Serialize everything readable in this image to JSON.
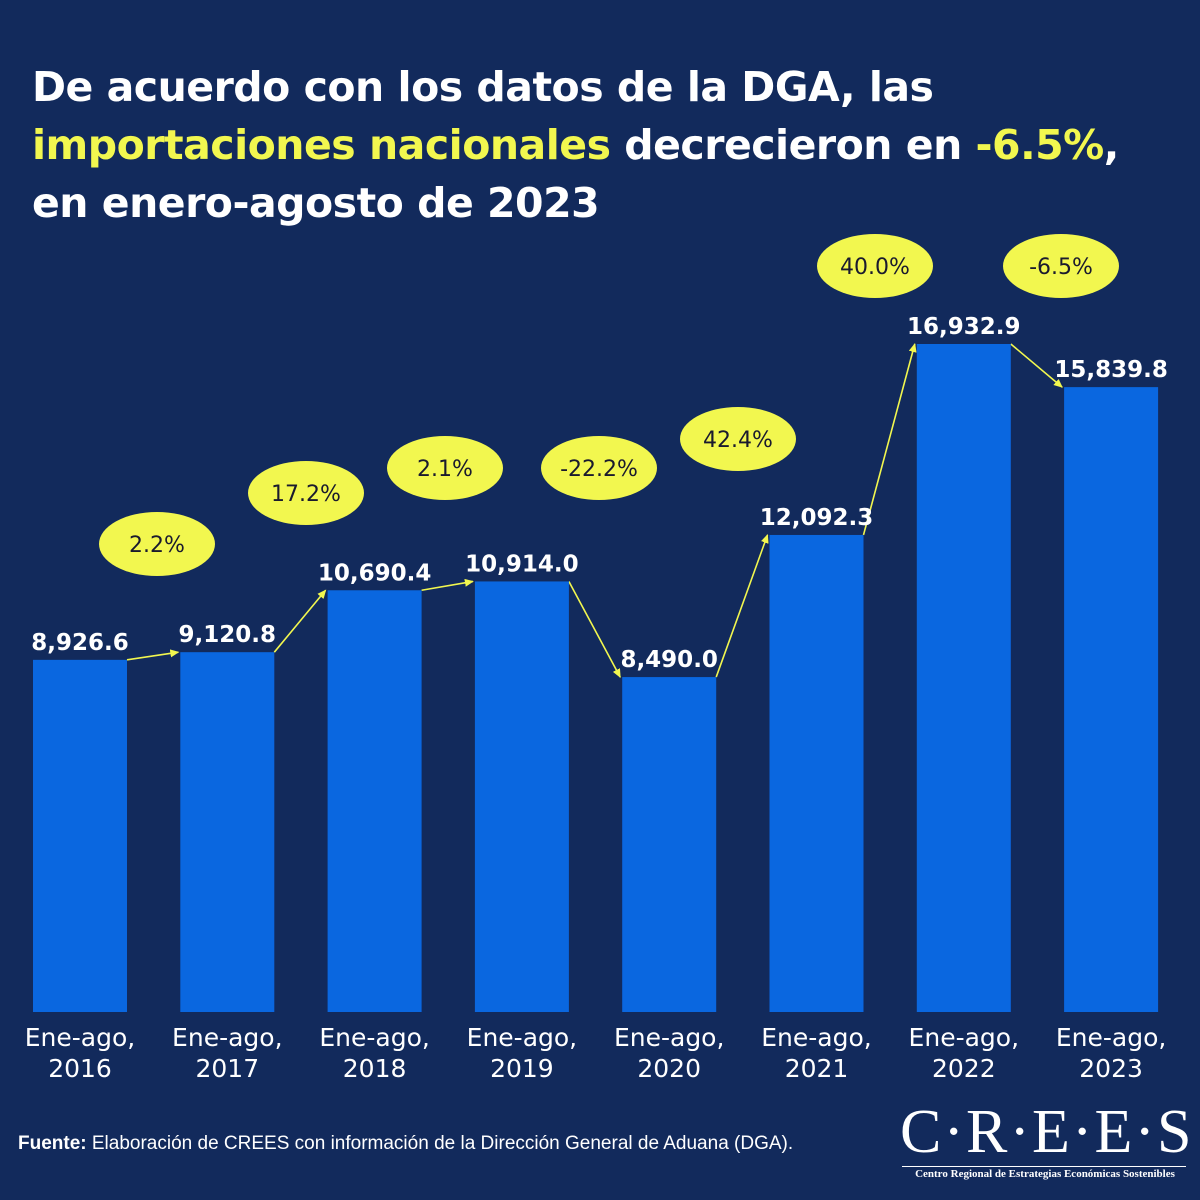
{
  "title": {
    "part1": "De acuerdo con los datos de la DGA, las ",
    "highlight1": "importaciones nacionales",
    "part2": " decrecieron en ",
    "highlight2": "-6.5%",
    "part3": ", en enero-agosto de 2023"
  },
  "colors": {
    "background": "#122a5c",
    "bar": "#0a67e0",
    "bubble": "#f2f74f",
    "arrow": "#f2f74f",
    "text": "#ffffff"
  },
  "chart_data": {
    "type": "bar",
    "categories": [
      [
        "Ene-ago,",
        "2016"
      ],
      [
        "Ene-ago,",
        "2017"
      ],
      [
        "Ene-ago,",
        "2018"
      ],
      [
        "Ene-ago,",
        "2019"
      ],
      [
        "Ene-ago,",
        "2020"
      ],
      [
        "Ene-ago,",
        "2021"
      ],
      [
        "Ene-ago,",
        "2022"
      ],
      [
        "Ene-ago,",
        "2023"
      ]
    ],
    "values": [
      8926.6,
      9120.8,
      10690.4,
      10914.0,
      8490.0,
      12092.3,
      16932.9,
      15839.8
    ],
    "value_labels": [
      "8,926.6",
      "9,120.8",
      "10,690.4",
      "10,914.0",
      "8,490.0",
      "12,092.3",
      "16,932.9",
      "15,839.8"
    ],
    "growth_labels": [
      "2.2%",
      "17.2%",
      "2.1%",
      "-22.2%",
      "42.4%",
      "40.0%",
      "-6.5%"
    ],
    "ylim": [
      0,
      18000
    ],
    "grid": false,
    "xlabel": "",
    "ylabel": ""
  },
  "source": {
    "label": "Fuente:",
    "text": " Elaboración de CREES con información de la Dirección General de Aduana (DGA)."
  },
  "logo": {
    "name": "C·R·E·E·S",
    "subtitle": "Centro Regional de Estrategias Económicas Sostenibles"
  }
}
